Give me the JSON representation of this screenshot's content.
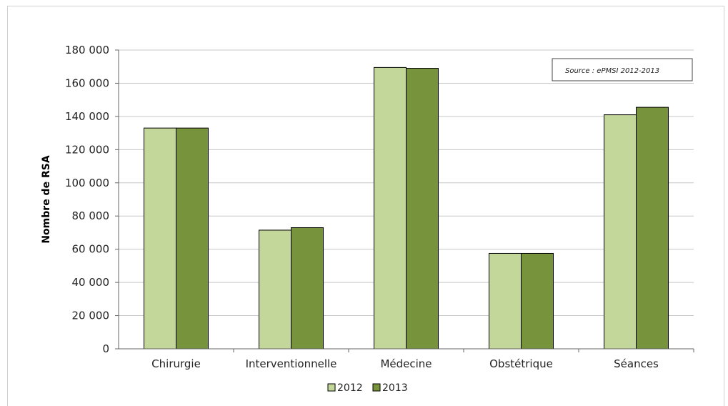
{
  "chart_data": {
    "type": "bar",
    "title": "",
    "xlabel": "",
    "ylabel": "Nombre de RSA",
    "ylim": [
      0,
      180000
    ],
    "yticks": [
      0,
      20000,
      40000,
      60000,
      80000,
      100000,
      120000,
      140000,
      160000,
      180000
    ],
    "ytick_labels": [
      "0",
      "20 000",
      "40 000",
      "60 000",
      "80 000",
      "100 000",
      "120 000",
      "140 000",
      "160 000",
      "180 000"
    ],
    "categories": [
      "Chirurgie",
      "Interventionnelle",
      "Médecine",
      "Obstétrique",
      "Séances"
    ],
    "series": [
      {
        "name": "2012",
        "color": "#c4d79b",
        "values": [
          133000,
          71500,
          169500,
          57500,
          141000
        ]
      },
      {
        "name": "2013",
        "color": "#77933c",
        "values": [
          133000,
          73000,
          169000,
          57500,
          145500
        ]
      }
    ],
    "grid": true,
    "legend_position": "bottom",
    "annotation": "Source : ePMSI 2012-2013"
  }
}
